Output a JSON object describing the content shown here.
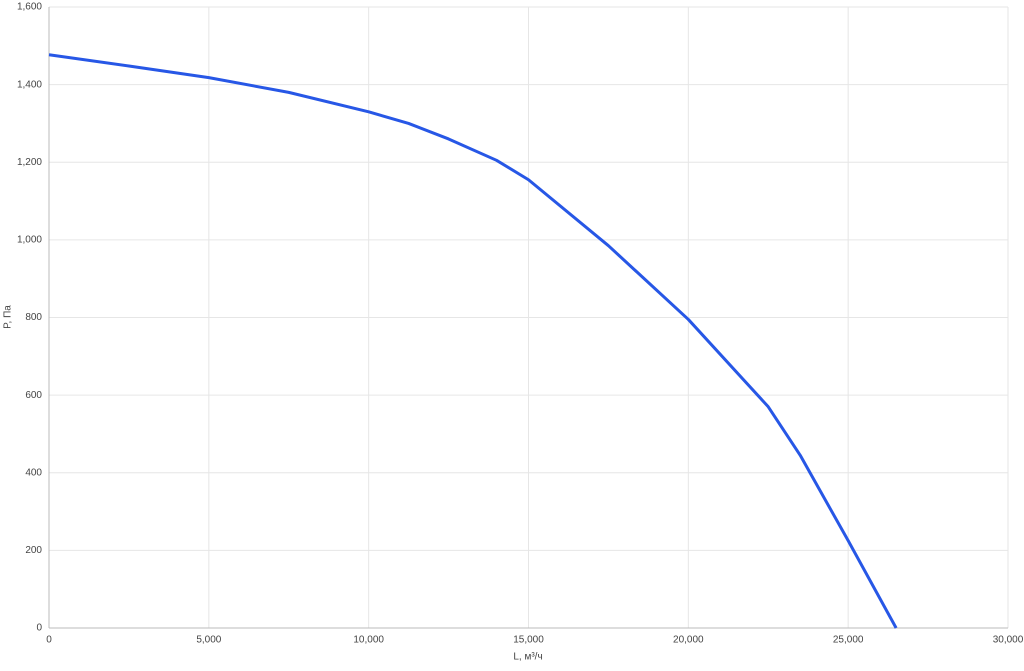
{
  "chart_data": {
    "type": "line",
    "x_label": "L, м³/ч",
    "y_label": "P, Па",
    "x": [
      0,
      2500,
      5000,
      7500,
      10000,
      11250,
      12500,
      14000,
      15000,
      17500,
      20000,
      22500,
      23500,
      25000,
      26000,
      26500
    ],
    "values": [
      1477,
      1448,
      1418,
      1380,
      1330,
      1300,
      1260,
      1205,
      1155,
      985,
      795,
      570,
      445,
      225,
      75,
      0
    ],
    "color": "#2757e6",
    "xlim": [
      0,
      30000
    ],
    "xticks": [
      0,
      {
        "value": 5000,
        "label": "5,000"
      },
      {
        "value": 10000,
        "label": "10,000"
      },
      {
        "value": 15000,
        "label": "15,000"
      },
      {
        "value": 20000,
        "label": "20,000"
      },
      {
        "value": 25000,
        "label": "25,000"
      },
      {
        "value": 30000,
        "label": "30,000"
      }
    ],
    "ylim": [
      0,
      1600
    ],
    "yticks": [
      0,
      200,
      400,
      600,
      800,
      {
        "value": 1000,
        "label": "1,000"
      },
      {
        "value": 1200,
        "label": "1,200"
      },
      {
        "value": 1400,
        "label": "1,400"
      },
      {
        "value": 1600,
        "label": "1,600"
      }
    ],
    "grid": true
  }
}
